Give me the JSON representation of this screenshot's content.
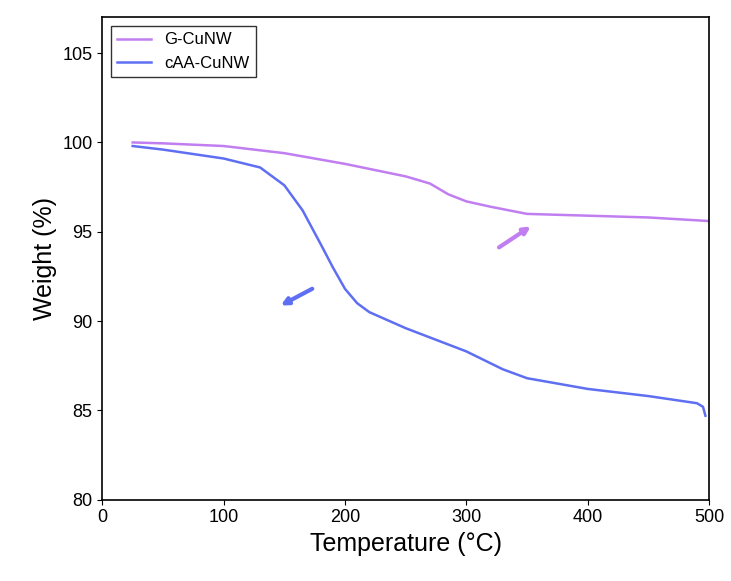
{
  "chart_data": {
    "type": "line",
    "x_label": "Temperature (°C)",
    "y_label": "Weight (%)",
    "series": [
      {
        "name": "G-CuNW",
        "color": "#c07ef0",
        "x": [
          25,
          50,
          100,
          150,
          200,
          250,
          270,
          285,
          300,
          320,
          350,
          400,
          450,
          500
        ],
        "values": [
          100.0,
          99.95,
          99.8,
          99.4,
          98.8,
          98.1,
          97.7,
          97.1,
          96.7,
          96.4,
          96.0,
          95.9,
          95.8,
          95.6
        ]
      },
      {
        "name": "cAA-CuNW",
        "color": "#5f6ff2",
        "x": [
          25,
          50,
          100,
          130,
          150,
          165,
          180,
          190,
          200,
          210,
          220,
          250,
          300,
          330,
          350,
          400,
          450,
          490,
          495,
          497
        ],
        "values": [
          99.8,
          99.6,
          99.1,
          98.6,
          97.6,
          96.2,
          94.3,
          93.0,
          91.8,
          91.0,
          90.5,
          89.6,
          88.3,
          87.3,
          86.8,
          86.2,
          85.8,
          85.4,
          85.2,
          84.7
        ]
      }
    ],
    "xlim": [
      0,
      500
    ],
    "xticks": [
      0,
      100,
      200,
      300,
      400,
      500
    ],
    "ylim": [
      80,
      107
    ],
    "yticks": [
      80,
      85,
      90,
      95,
      100,
      105
    ],
    "legend": "upper left",
    "grid": false
  }
}
